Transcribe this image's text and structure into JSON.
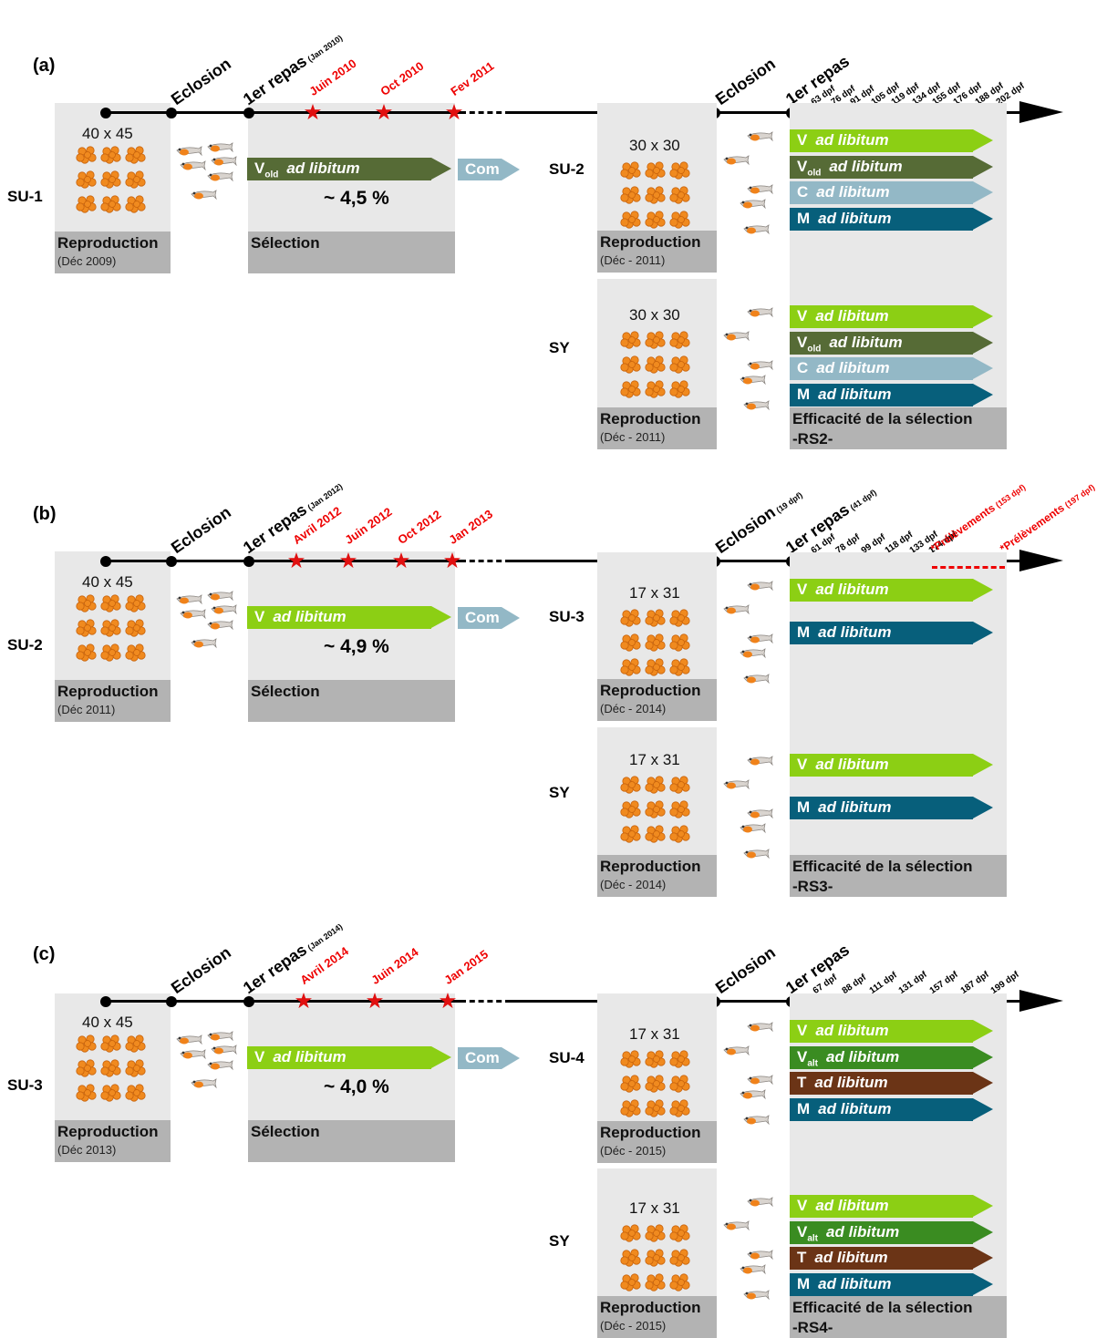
{
  "panels": [
    {
      "label": "(a)",
      "parent": "SU-1",
      "parent_dim": "40 x 45",
      "parent_repro": "Reproduction",
      "parent_repro_date": "(Déc 2009)",
      "eclosion": "Eclosion",
      "first_meal": "1er repas",
      "first_meal_date": "(Jan 2010)",
      "selection_dates": [
        "Juin 2010",
        "Oct 2010",
        "Fev 2011"
      ],
      "diet_main": "V",
      "diet_sub": "old",
      "diet_text": "ad libitum",
      "selection_pct": "~ 4,5 %",
      "selection_label": "Sélection",
      "com": "Com",
      "eclosion2": "Eclosion",
      "first_meal2": "1er repas",
      "dpf_ticks": [
        "63 dpf",
        "76 dpf",
        "91 dpf",
        "105 dpf",
        "119 dpf",
        "134 dpf",
        "155 dpf",
        "176 dpf",
        "188 dpf",
        "202 dpf"
      ],
      "lines": [
        {
          "name": "SU-2",
          "dim": "30 x 30",
          "repro": "Reproduction",
          "repro_date": "(Déc - 2011)"
        },
        {
          "name": "SY",
          "dim": "30 x 30",
          "repro": "Reproduction",
          "repro_date": "(Déc - 2011)"
        }
      ],
      "diets": [
        {
          "letter": "V",
          "sub": "",
          "text": "ad libitum",
          "color": "#8ccf14"
        },
        {
          "letter": "V",
          "sub": "old",
          "text": "ad libitum",
          "color": "#566b36"
        },
        {
          "letter": "C",
          "sub": "",
          "text": "ad libitum",
          "color": "#93b8c6"
        },
        {
          "letter": "M",
          "sub": "",
          "text": "ad libitum",
          "color": "#075f7b"
        }
      ],
      "efficacy": "Efficacité de la sélection",
      "rs": "-RS2-"
    },
    {
      "label": "(b)",
      "parent": "SU-2",
      "parent_dim": "40 x 45",
      "parent_repro": "Reproduction",
      "parent_repro_date": "(Déc 2011)",
      "eclosion": "Eclosion",
      "first_meal": "1er repas",
      "first_meal_date": "(Jan 2012)",
      "selection_dates": [
        "Avril 2012",
        "Juin 2012",
        "Oct 2012",
        "Jan 2013"
      ],
      "diet_main": "V",
      "diet_sub": "",
      "diet_text": "ad libitum",
      "selection_pct": "~ 4,9 %",
      "selection_label": "Sélection",
      "com": "Com",
      "eclosion2": "Eclosion",
      "eclosion2_note": "(19 dpf)",
      "first_meal2": "1er repas",
      "first_meal2_note": "(41 dpf)",
      "dpf_ticks": [
        "61 dpf",
        "78 dpf",
        "99 dpf",
        "118 dpf",
        "133 dpf",
        "174 dpf"
      ],
      "sampling": [
        "*Prélèvements",
        "(153 dpf)",
        "*Prélèvements",
        "(197 dpf)"
      ],
      "lines": [
        {
          "name": "SU-3",
          "dim": "17 x 31",
          "repro": "Reproduction",
          "repro_date": "(Déc - 2014)"
        },
        {
          "name": "SY",
          "dim": "17 x 31",
          "repro": "Reproduction",
          "repro_date": "(Déc - 2014)"
        }
      ],
      "diets": [
        {
          "letter": "V",
          "sub": "",
          "text": "ad libitum",
          "color": "#8ccf14"
        },
        {
          "letter": "M",
          "sub": "",
          "text": "ad libitum",
          "color": "#075f7b"
        }
      ],
      "efficacy": "Efficacité de la sélection",
      "rs": "-RS3-"
    },
    {
      "label": "(c)",
      "parent": "SU-3",
      "parent_dim": "40 x 45",
      "parent_repro": "Reproduction",
      "parent_repro_date": "(Déc 2013)",
      "eclosion": "Eclosion",
      "first_meal": "1er repas",
      "first_meal_date": "(Jan 2014)",
      "selection_dates": [
        "Avril 2014",
        "Juin 2014",
        "Jan 2015"
      ],
      "diet_main": "V",
      "diet_sub": "",
      "diet_text": "ad libitum",
      "selection_pct": "~ 4,0 %",
      "selection_label": "Sélection",
      "com": "Com",
      "eclosion2": "Eclosion",
      "first_meal2": "1er repas",
      "dpf_ticks": [
        "67 dpf",
        "88 dpf",
        "111 dpf",
        "131 dpf",
        "157 dpf",
        "187 dpf",
        "199 dpf"
      ],
      "lines": [
        {
          "name": "SU-4",
          "dim": "17 x 31",
          "repro": "Reproduction",
          "repro_date": "(Déc - 2015)"
        },
        {
          "name": "SY",
          "dim": "17 x 31",
          "repro": "Reproduction",
          "repro_date": "(Déc - 2015)"
        }
      ],
      "diets": [
        {
          "letter": "V",
          "sub": "",
          "text": "ad libitum",
          "color": "#8ccf14"
        },
        {
          "letter": "V",
          "sub": "alt",
          "text": "ad libitum",
          "color": "#3a8c21"
        },
        {
          "letter": "T",
          "sub": "",
          "text": "ad libitum",
          "color": "#6b3416"
        },
        {
          "letter": "M",
          "sub": "",
          "text": "ad libitum",
          "color": "#075f7b"
        }
      ],
      "efficacy": "Efficacité de la sélection",
      "rs": "-RS4-"
    }
  ]
}
